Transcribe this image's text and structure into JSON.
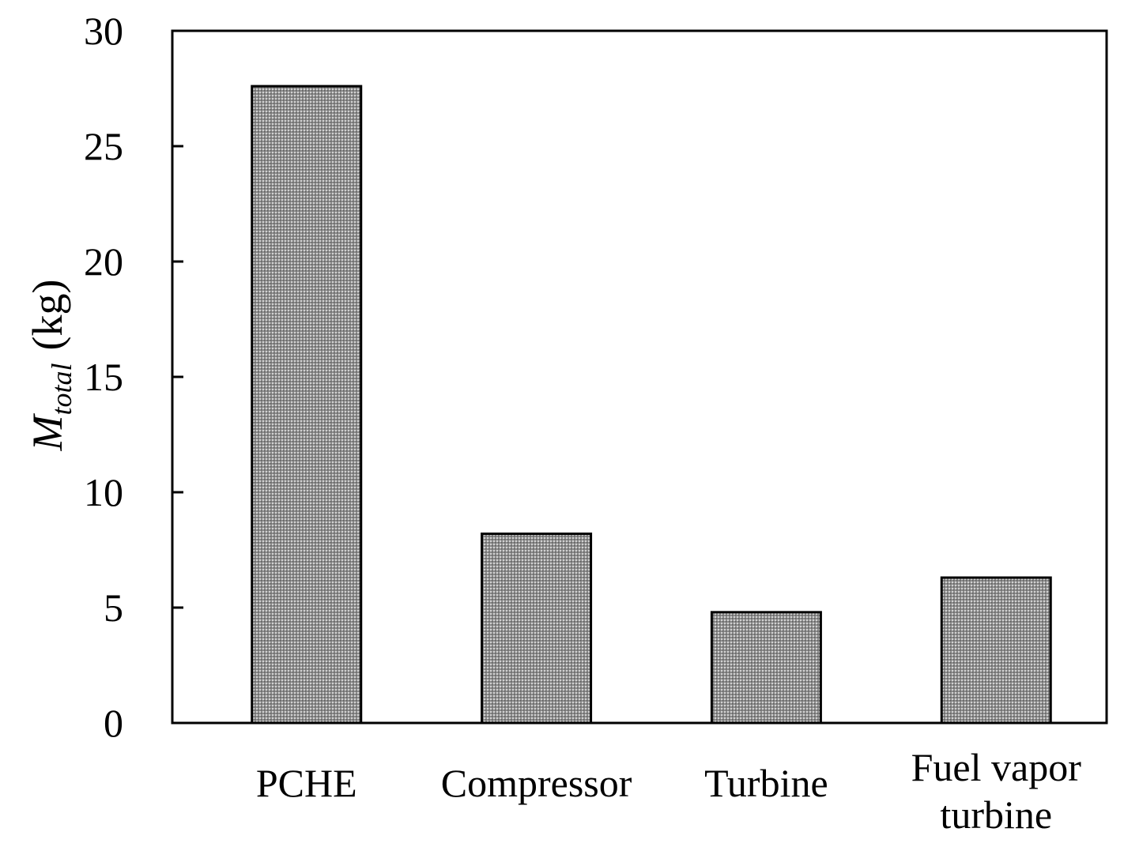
{
  "chart_data": {
    "type": "bar",
    "categories": [
      "PCHE",
      "Compressor",
      "Turbine",
      "Fuel vapor turbine"
    ],
    "category_label_lines": [
      [
        "PCHE"
      ],
      [
        "Compressor"
      ],
      [
        "Turbine"
      ],
      [
        "Fuel vapor",
        "turbine"
      ]
    ],
    "values": [
      27.6,
      8.2,
      4.8,
      6.3
    ],
    "title": "",
    "xlabel": "",
    "ylabel": {
      "symbol": "M",
      "subscript": "total",
      "unit": "(kg)"
    },
    "ylim": [
      0,
      30
    ],
    "yticks": [
      "0",
      "5",
      "10",
      "15",
      "20",
      "25",
      "30"
    ],
    "grid": false,
    "bar_fill": "dotted gray pattern",
    "colors": {
      "bar_fill": "#8c8c8c",
      "bar_dots": "#ffffff",
      "outline": "#000000"
    }
  }
}
